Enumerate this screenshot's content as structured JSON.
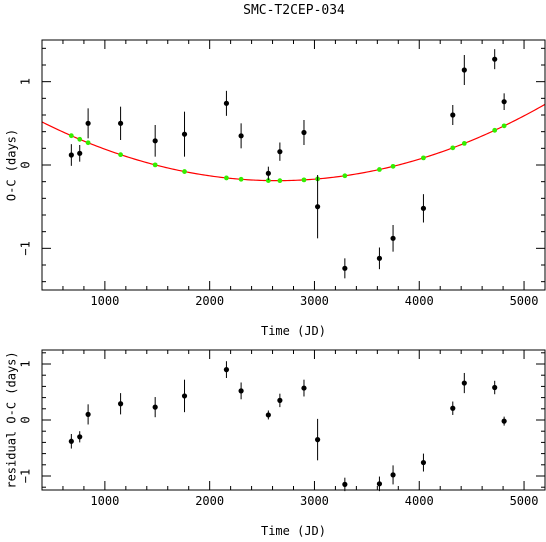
{
  "title": "SMC-T2CEP-034",
  "chart_data": [
    {
      "type": "scatter",
      "xlabel": "Time (JD)",
      "ylabel": "O-C (days)",
      "xlim": [
        400,
        5200
      ],
      "ylim": [
        -1.5,
        1.5
      ],
      "xticks": [
        1000,
        2000,
        3000,
        4000,
        5000
      ],
      "yticks": [
        -1,
        0,
        1
      ],
      "xticklabels": [
        "1000",
        "2000",
        "3000",
        "4000",
        "5000"
      ],
      "yticklabels": [
        "−1",
        "0",
        "1"
      ],
      "series": [
        {
          "kind": "observed",
          "color": "#000000",
          "points": [
            {
              "x": 680,
              "y": 0.12,
              "err": 0.13
            },
            {
              "x": 760,
              "y": 0.14,
              "err": 0.1
            },
            {
              "x": 840,
              "y": 0.5,
              "err": 0.18
            },
            {
              "x": 1150,
              "y": 0.5,
              "err": 0.2
            },
            {
              "x": 1480,
              "y": 0.29,
              "err": 0.19
            },
            {
              "x": 1760,
              "y": 0.37,
              "err": 0.27
            },
            {
              "x": 2160,
              "y": 0.74,
              "err": 0.15
            },
            {
              "x": 2300,
              "y": 0.35,
              "err": 0.15
            },
            {
              "x": 2560,
              "y": -0.1,
              "err": 0.08
            },
            {
              "x": 2670,
              "y": 0.16,
              "err": 0.11
            },
            {
              "x": 2900,
              "y": 0.39,
              "err": 0.15
            },
            {
              "x": 3030,
              "y": -0.5,
              "err": 0.38
            },
            {
              "x": 3290,
              "y": -1.24,
              "err": 0.12
            },
            {
              "x": 3620,
              "y": -1.12,
              "err": 0.13
            },
            {
              "x": 3750,
              "y": -0.88,
              "err": 0.16
            },
            {
              "x": 4040,
              "y": -0.52,
              "err": 0.17
            },
            {
              "x": 4320,
              "y": 0.6,
              "err": 0.12
            },
            {
              "x": 4430,
              "y": 1.14,
              "err": 0.18
            },
            {
              "x": 4720,
              "y": 1.27,
              "err": 0.12
            },
            {
              "x": 4810,
              "y": 0.76,
              "err": 0.1
            }
          ]
        },
        {
          "kind": "fit",
          "color": "#ff0000",
          "quadratic": {
            "a": 1.4e-07,
            "b": -0.00074,
            "c": 0.79
          }
        },
        {
          "kind": "model",
          "color": "#33ee00",
          "x": [
            680,
            760,
            840,
            1150,
            1480,
            1760,
            2160,
            2300,
            2560,
            2670,
            2900,
            3030,
            3290,
            3620,
            3750,
            4040,
            4320,
            4430,
            4720,
            4810
          ]
        }
      ]
    },
    {
      "type": "scatter",
      "xlabel": "Time (JD)",
      "ylabel": "residual O-C (days)",
      "xlim": [
        400,
        5200
      ],
      "ylim": [
        -1.25,
        1.25
      ],
      "xticks": [
        1000,
        2000,
        3000,
        4000,
        5000
      ],
      "yticks": [
        -1,
        0,
        1
      ],
      "xticklabels": [
        "1000",
        "2000",
        "3000",
        "4000",
        "5000"
      ],
      "yticklabels": [
        "−1",
        "0",
        "1"
      ],
      "series": [
        {
          "kind": "residual",
          "color": "#000000",
          "points": [
            {
              "x": 680,
              "y": -0.38,
              "err": 0.13
            },
            {
              "x": 760,
              "y": -0.3,
              "err": 0.1
            },
            {
              "x": 840,
              "y": 0.1,
              "err": 0.18
            },
            {
              "x": 1150,
              "y": 0.29,
              "err": 0.19
            },
            {
              "x": 1480,
              "y": 0.23,
              "err": 0.18
            },
            {
              "x": 1760,
              "y": 0.43,
              "err": 0.29
            },
            {
              "x": 2160,
              "y": 0.9,
              "err": 0.15
            },
            {
              "x": 2300,
              "y": 0.52,
              "err": 0.15
            },
            {
              "x": 2560,
              "y": 0.09,
              "err": 0.08
            },
            {
              "x": 2670,
              "y": 0.35,
              "err": 0.12
            },
            {
              "x": 2900,
              "y": 0.57,
              "err": 0.15
            },
            {
              "x": 3030,
              "y": -0.35,
              "err": 0.37
            },
            {
              "x": 3290,
              "y": -1.15,
              "err": 0.12
            },
            {
              "x": 3620,
              "y": -1.14,
              "err": 0.13
            },
            {
              "x": 3750,
              "y": -0.98,
              "err": 0.17
            },
            {
              "x": 4040,
              "y": -0.76,
              "err": 0.16
            },
            {
              "x": 4320,
              "y": 0.21,
              "err": 0.12
            },
            {
              "x": 4430,
              "y": 0.66,
              "err": 0.18
            },
            {
              "x": 4720,
              "y": 0.58,
              "err": 0.12
            },
            {
              "x": 4810,
              "y": -0.02,
              "err": 0.08
            }
          ]
        }
      ]
    }
  ]
}
